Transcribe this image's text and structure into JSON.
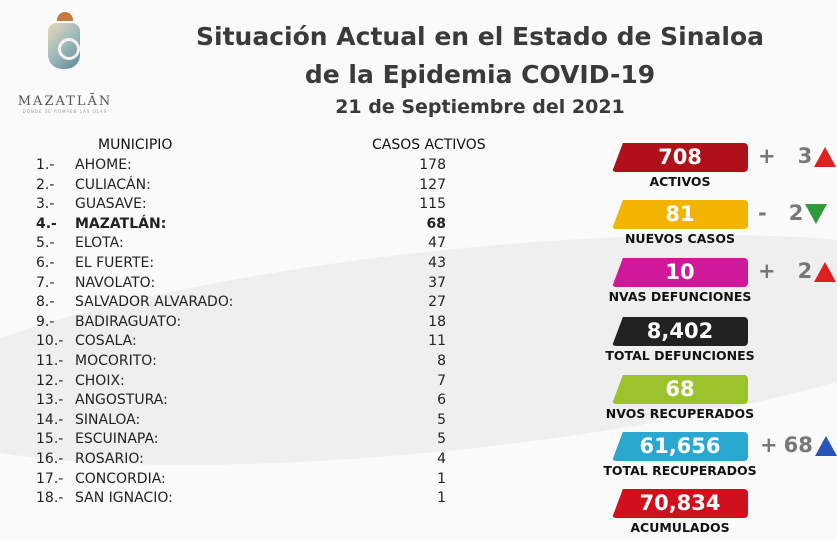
{
  "logo": {
    "name": "MAZATLĀN",
    "tagline": "DONDE SE ROMPEN LAS OLAS"
  },
  "title": {
    "line1": "Situación Actual en el Estado de Sinaloa",
    "line2": "de la Epidemia COVID-19",
    "date": "21 de Septiembre del 2021"
  },
  "table": {
    "col_municipio": "MUNICIPIO",
    "col_casos": "CASOS ACTIVOS",
    "rows": [
      {
        "n": "1.-",
        "name": "AHOME:",
        "value": "178"
      },
      {
        "n": "2.-",
        "name": "CULIACÁN:",
        "value": "127"
      },
      {
        "n": "3.-",
        "name": "GUASAVE:",
        "value": "115"
      },
      {
        "n": "4.-",
        "name": "MAZATLÁN:",
        "value": "68"
      },
      {
        "n": "5.-",
        "name": "ELOTA:",
        "value": "47"
      },
      {
        "n": "6.-",
        "name": "EL FUERTE:",
        "value": "43"
      },
      {
        "n": "7.-",
        "name": "NAVOLATO:",
        "value": "37"
      },
      {
        "n": "8.-",
        "name": "SALVADOR ALVARADO:",
        "value": "27"
      },
      {
        "n": "9.-",
        "name": "BADIRAGUATO:",
        "value": "18"
      },
      {
        "n": "10.-",
        "name": "COSALA:",
        "value": "11"
      },
      {
        "n": "11.-",
        "name": "MOCORITO:",
        "value": "8"
      },
      {
        "n": "12.-",
        "name": "CHOIX:",
        "value": "7"
      },
      {
        "n": "13.-",
        "name": "ANGOSTURA:",
        "value": "6"
      },
      {
        "n": "14.-",
        "name": "SINALOA:",
        "value": "5"
      },
      {
        "n": "15.-",
        "name": "ESCUINAPA:",
        "value": "5"
      },
      {
        "n": "16.-",
        "name": "ROSARIO:",
        "value": "4"
      },
      {
        "n": "17.-",
        "name": "CONCORDIA:",
        "value": "1"
      },
      {
        "n": "18.-",
        "name": "SAN IGNACIO:",
        "value": "1"
      }
    ]
  },
  "stats": [
    {
      "value": "708",
      "label": "ACTIVOS",
      "color": "#b01018",
      "delta_sign": "+",
      "delta": "3",
      "arrow": "up-red"
    },
    {
      "value": "81",
      "label": "NUEVOS CASOS",
      "color": "#f2b400",
      "delta_sign": "-",
      "delta": "2",
      "arrow": "down-green"
    },
    {
      "value": "10",
      "label": "NVAS DEFUNCIONES",
      "color": "#d0189a",
      "delta_sign": "+",
      "delta": "2",
      "arrow": "up-red"
    },
    {
      "value": "8,402",
      "label": "TOTAL DEFUNCIONES",
      "color": "#222222"
    },
    {
      "value": "68",
      "label": "NVOS RECUPERADOS",
      "color": "#9cc22c"
    },
    {
      "value": "61,656",
      "label": "TOTAL RECUPERADOS",
      "color": "#2aa8cf",
      "delta_sign": "+",
      "delta": "68",
      "arrow": "up-blue"
    },
    {
      "value": "70,834",
      "label": "ACUMULADOS",
      "color": "#d0101c"
    }
  ]
}
